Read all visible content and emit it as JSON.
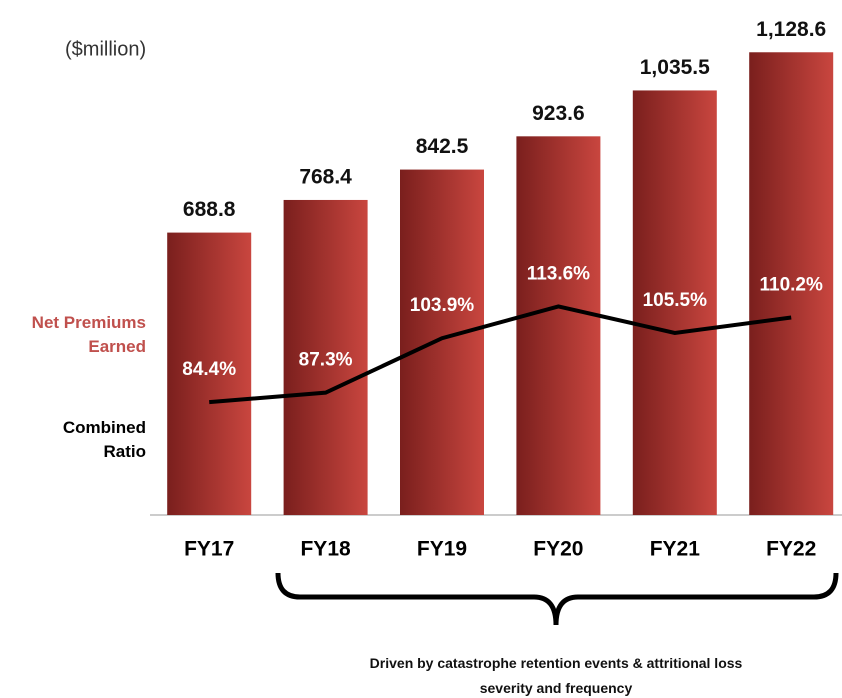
{
  "chart_data": {
    "type": "bar",
    "subtitle": "($million)",
    "categories": [
      "FY17",
      "FY18",
      "FY19",
      "FY20",
      "FY21",
      "FY22"
    ],
    "series": [
      {
        "name": "Net Premiums Earned",
        "color": "#c0504d",
        "type": "bar",
        "values": [
          688.8,
          768.4,
          842.5,
          923.6,
          1035.5,
          1128.6
        ],
        "value_labels": [
          "688.8",
          "768.4",
          "842.5",
          "923.6",
          "1,035.5",
          "1,128.6"
        ]
      },
      {
        "name": "Combined Ratio",
        "color": "#000000",
        "type": "line",
        "axis": "y2",
        "values": [
          84.4,
          87.3,
          103.9,
          113.6,
          105.5,
          110.2
        ],
        "value_labels": [
          "84.4%",
          "87.3%",
          "103.9%",
          "113.6%",
          "105.5%",
          "110.2%"
        ]
      }
    ],
    "ylim": [
      0,
      1200
    ],
    "y2lim": [
      50,
      200
    ],
    "annotation": "Driven by catastrophe retention events & attritional loss severity and frequency"
  }
}
